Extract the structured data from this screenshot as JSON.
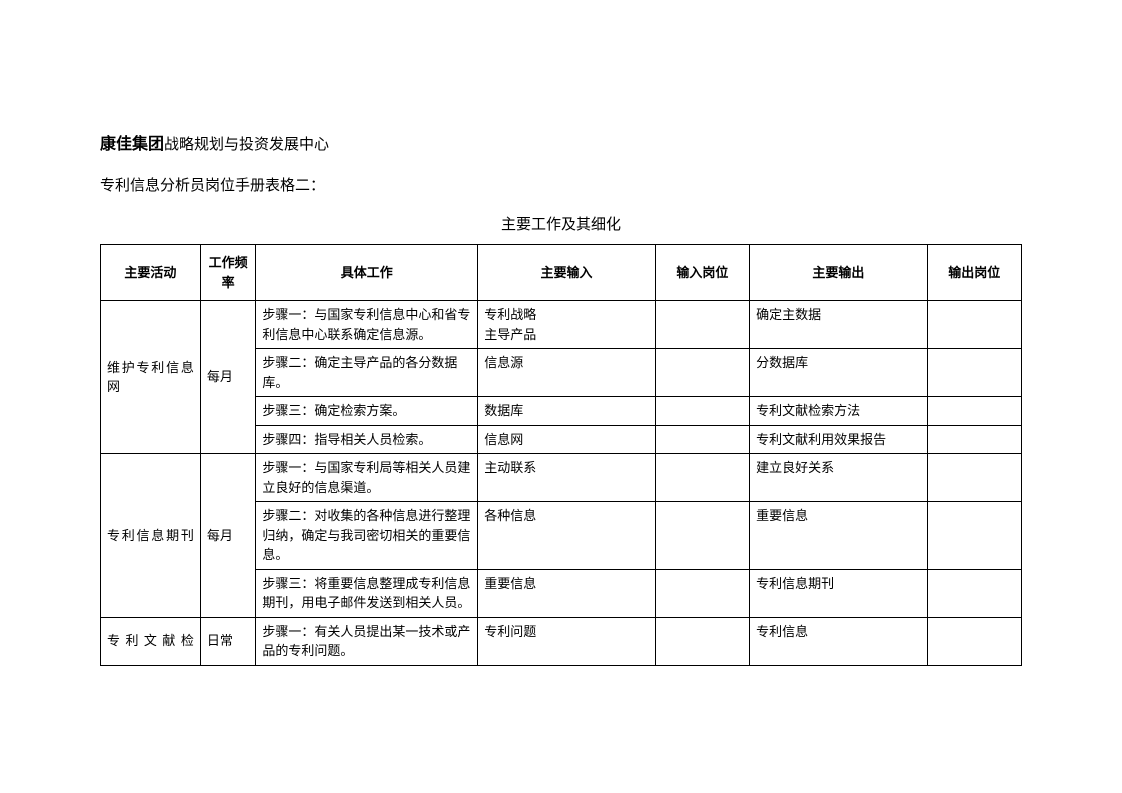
{
  "header": {
    "company": "康佳集团",
    "department": "战略规划与投资发展中心",
    "subtitle": "专利信息分析员岗位手册表格二：",
    "tableTitle": "主要工作及其细化"
  },
  "table": {
    "headers": {
      "activity": "主要活动",
      "freq": "工作频率",
      "work": "具体工作",
      "input": "主要输入",
      "inputPos": "输入岗位",
      "output": "主要输出",
      "outputPos": "输出岗位"
    },
    "group1": {
      "activity": "维护专利信息网",
      "freq": "每月",
      "rows": [
        {
          "work": "步骤一：与国家专利信息中心和省专利信息中心联系确定信息源。",
          "input": "专利战略\n主导产品",
          "inputPos": "",
          "output": "确定主数据",
          "outputPos": ""
        },
        {
          "work": "步骤二：确定主导产品的各分数据库。",
          "input": " 信息源",
          "inputPos": "",
          "output": "分数据库",
          "outputPos": ""
        },
        {
          "work": "步骤三：确定检索方案。",
          "input": " 数据库",
          "inputPos": "",
          "output": "专利文献检索方法",
          "outputPos": ""
        },
        {
          "work": "步骤四：指导相关人员检索。",
          "input": " 信息网",
          "inputPos": "",
          "output": "专利文献利用效果报告",
          "outputPos": ""
        }
      ]
    },
    "group2": {
      "activity": "专利信息期刊",
      "freq": "每月",
      "rows": [
        {
          "work": "步骤一：与国家专利局等相关人员建立良好的信息渠道。",
          "input": "主动联系",
          "inputPos": "",
          "output": "建立良好关系",
          "outputPos": ""
        },
        {
          "work": "步骤二：对收集的各种信息进行整理归纳，确定与我司密切相关的重要信息。",
          "input": "各种信息",
          "inputPos": "",
          "output": "重要信息",
          "outputPos": ""
        },
        {
          "work": "步骤三：将重要信息整理成专利信息期刊，用电子邮件发送到相关人员。",
          "input": "重要信息",
          "inputPos": "",
          "output": "专利信息期刊",
          "outputPos": ""
        }
      ]
    },
    "group3": {
      "activity": "专利文献检",
      "freq": "日常",
      "rows": [
        {
          "work": "步骤一：有关人员提出某一技术或产品的专利问题。",
          "input": "专利问题",
          "inputPos": "",
          "output": "专利信息",
          "outputPos": ""
        }
      ]
    }
  }
}
